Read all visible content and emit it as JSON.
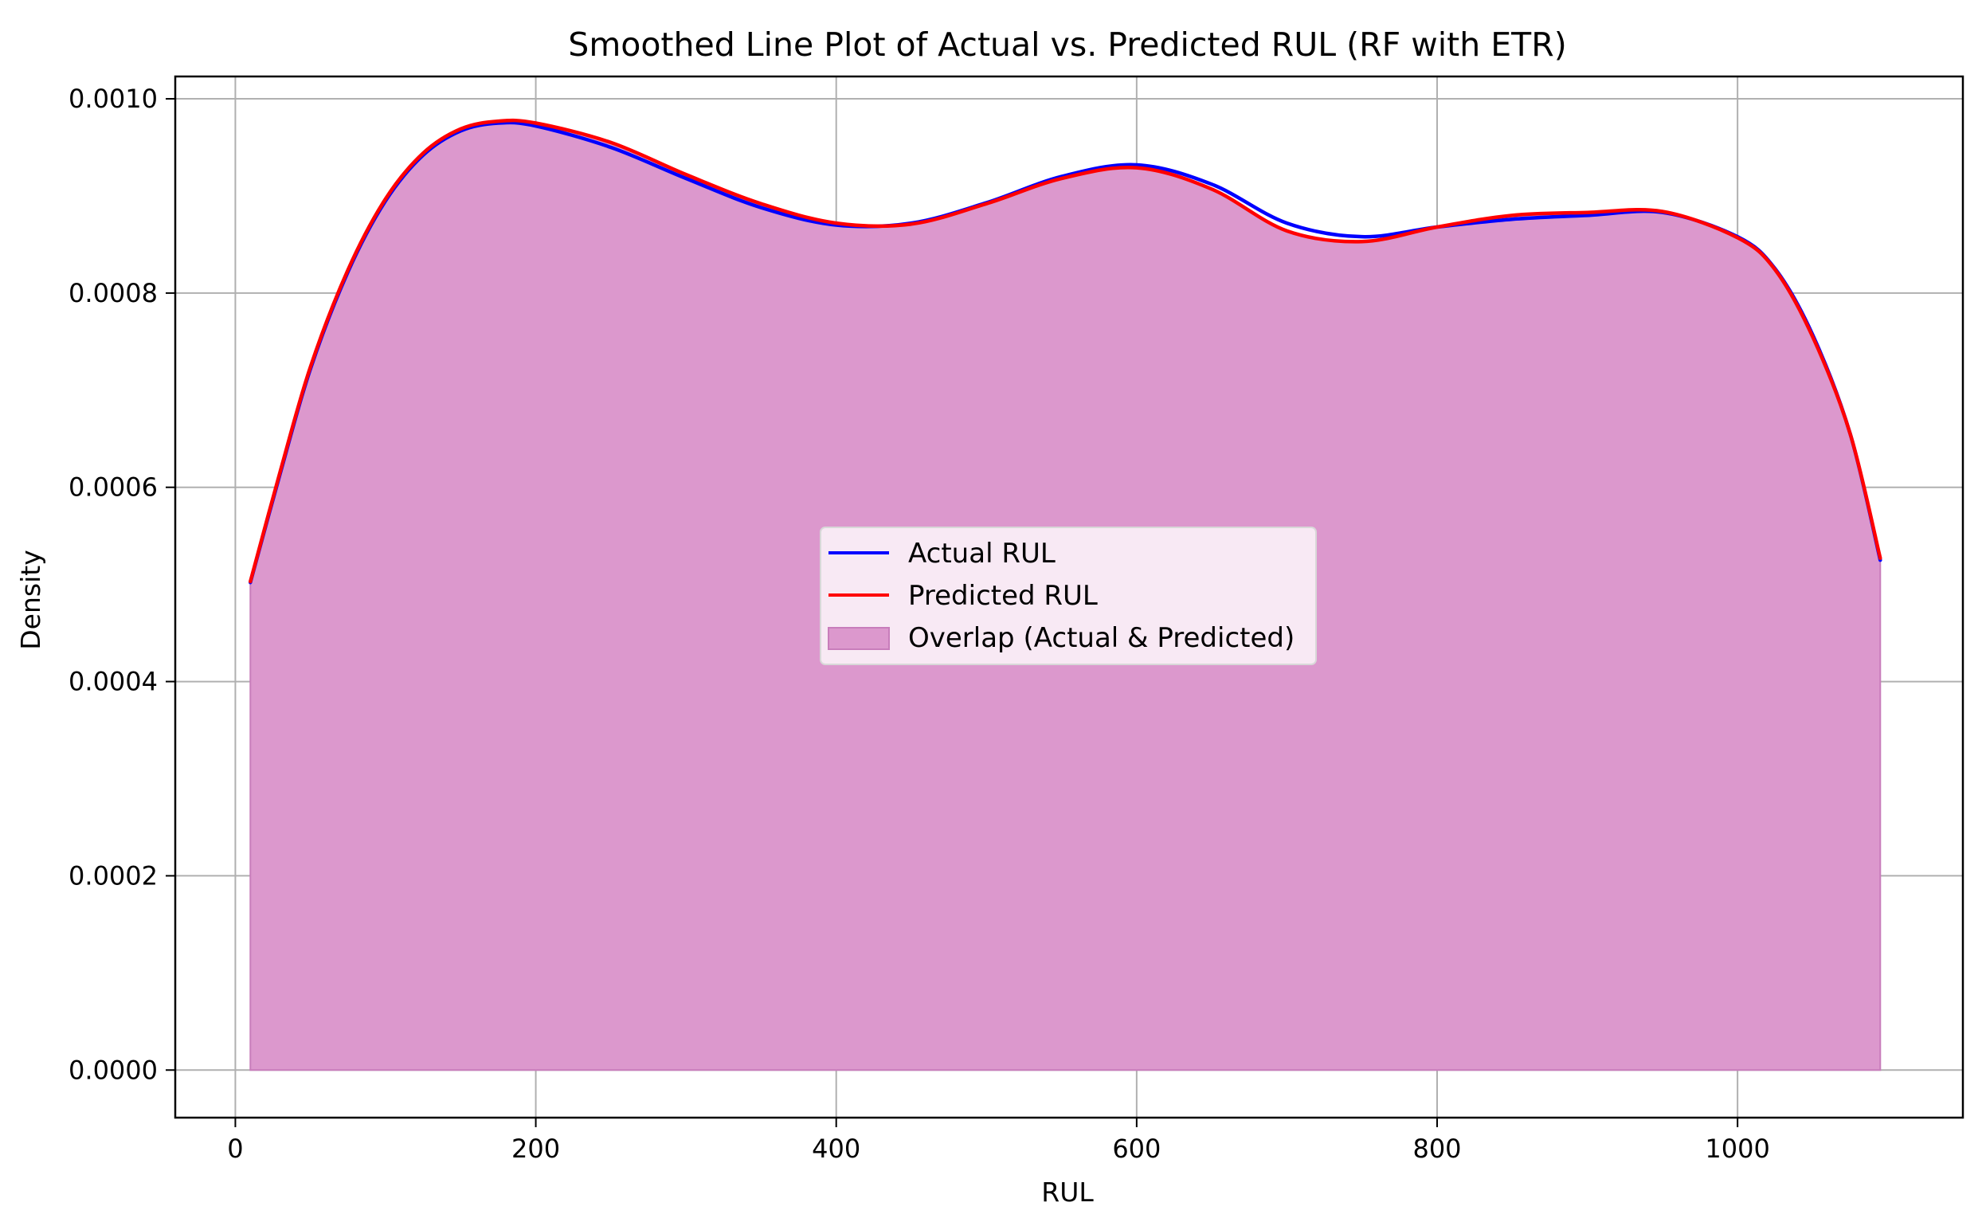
{
  "chart_data": {
    "type": "area",
    "title": "Smoothed Line Plot of Actual vs. Predicted RUL (RF with ETR)",
    "xlabel": "RUL",
    "ylabel": "Density",
    "xlim": [
      -40,
      1150
    ],
    "ylim": [
      -4.9e-05,
      0.001023
    ],
    "x_ticks": [
      0,
      200,
      400,
      600,
      800,
      1000
    ],
    "x_tick_labels": [
      "0",
      "200",
      "400",
      "600",
      "800",
      "1000"
    ],
    "y_ticks": [
      0,
      0.0002,
      0.0004,
      0.0006,
      0.0008,
      0.001
    ],
    "y_tick_labels": [
      "0.0000",
      "0.0002",
      "0.0004",
      "0.0006",
      "0.0008",
      "0.0010"
    ],
    "grid": true,
    "legend_position": "center",
    "x": [
      10,
      30,
      50,
      75,
      100,
      125,
      150,
      175,
      200,
      250,
      300,
      350,
      400,
      450,
      500,
      550,
      600,
      650,
      700,
      750,
      800,
      850,
      900,
      950,
      1000,
      1025,
      1050,
      1075,
      1095
    ],
    "series": [
      {
        "name": "Actual RUL",
        "color": "#0000ff",
        "values": [
          0.000502,
          0.000615,
          0.000722,
          0.000822,
          0.000895,
          0.000942,
          0.000967,
          0.000975,
          0.000972,
          0.00095,
          0.000918,
          0.000888,
          0.00087,
          0.000872,
          0.000893,
          0.00092,
          0.000932,
          0.000912,
          0.000872,
          0.000858,
          0.000868,
          0.000876,
          0.00088,
          0.000883,
          0.000858,
          0.000825,
          0.000757,
          0.000655,
          0.000525
        ]
      },
      {
        "name": "Predicted RUL",
        "color": "#ff0000",
        "values": [
          0.000503,
          0.000617,
          0.000724,
          0.000824,
          0.000897,
          0.000944,
          0.000969,
          0.000977,
          0.000975,
          0.000955,
          0.000922,
          0.000892,
          0.000872,
          0.000871,
          0.000892,
          0.000918,
          0.000929,
          0.000907,
          0.000864,
          0.000853,
          0.000868,
          0.00088,
          0.000883,
          0.000884,
          0.000857,
          0.000824,
          0.000755,
          0.000655,
          0.000527
        ]
      }
    ],
    "fill": {
      "name": "Overlap (Actual & Predicted)",
      "color": "#dc98cd",
      "edge_color": "#c87dbb"
    },
    "colors": {
      "grid": "#b0b0b0",
      "axes": "#000000",
      "legend_bg": "#f8e9f4",
      "legend_border": "#d8d8d8"
    }
  }
}
